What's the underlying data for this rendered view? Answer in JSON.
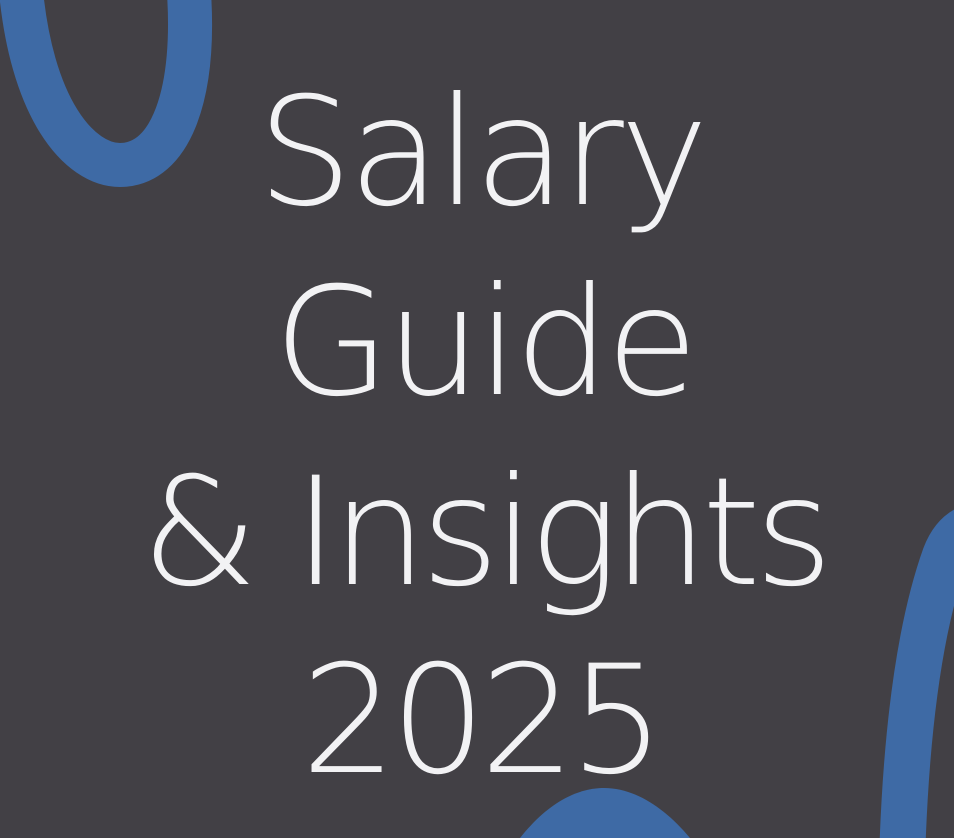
{
  "title": {
    "line1": "Salary",
    "line2": "Guide",
    "line3": "& Insights",
    "line4": "2025"
  },
  "colors": {
    "background": "#424045",
    "accent_blue": "#3e6aa5",
    "text": "#f2f2f4"
  },
  "decorations": [
    "blue-loop-top-left",
    "blue-stroke-bottom-right",
    "blue-arc-bottom-center"
  ]
}
